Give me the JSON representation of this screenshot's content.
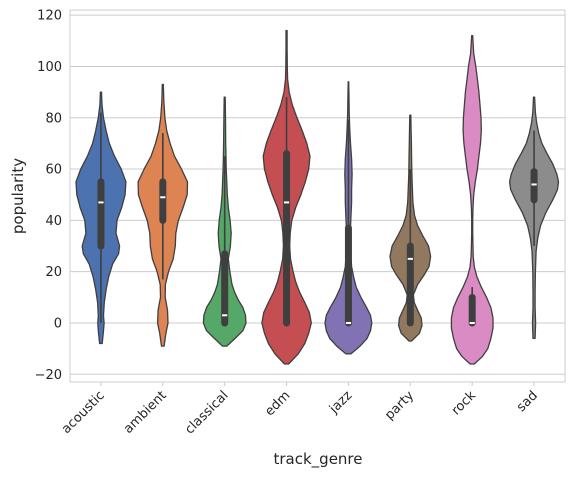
{
  "chart_data": {
    "type": "violin",
    "title": "",
    "xlabel": "track_genre",
    "ylabel": "popularity",
    "ylim": [
      -23,
      122
    ],
    "yticks": [
      -20,
      0,
      20,
      40,
      60,
      80,
      100,
      120
    ],
    "grid": "horizontal",
    "legend": "none",
    "categories": [
      "acoustic",
      "ambient",
      "classical",
      "edm",
      "jazz",
      "party",
      "rock",
      "sad"
    ],
    "colors": [
      "#4c72b0",
      "#dd8452",
      "#55a868",
      "#c44e52",
      "#8172b3",
      "#937860",
      "#da8bc3",
      "#8c8c8c"
    ],
    "series": [
      {
        "min": -8,
        "max": 90,
        "q1": 30,
        "median": 47,
        "q3": 55,
        "whisker_low": 0,
        "whisker_high": 82,
        "density": [
          [
            -8,
            0.05
          ],
          [
            -3,
            0.1
          ],
          [
            0,
            0.12
          ],
          [
            3,
            0.1
          ],
          [
            8,
            0.13
          ],
          [
            13,
            0.2
          ],
          [
            18,
            0.3
          ],
          [
            23,
            0.45
          ],
          [
            27,
            0.68
          ],
          [
            30,
            0.72
          ],
          [
            35,
            0.58
          ],
          [
            40,
            0.62
          ],
          [
            45,
            0.8
          ],
          [
            50,
            0.93
          ],
          [
            55,
            0.96
          ],
          [
            60,
            0.78
          ],
          [
            65,
            0.52
          ],
          [
            70,
            0.32
          ],
          [
            75,
            0.2
          ],
          [
            80,
            0.1
          ],
          [
            85,
            0.04
          ],
          [
            90,
            0.02
          ]
        ]
      },
      {
        "min": -9,
        "max": 93,
        "q1": 40,
        "median": 49,
        "q3": 55,
        "whisker_low": 17,
        "whisker_high": 74,
        "density": [
          [
            -9,
            0.05
          ],
          [
            -4,
            0.12
          ],
          [
            0,
            0.2
          ],
          [
            5,
            0.18
          ],
          [
            10,
            0.09
          ],
          [
            15,
            0.1
          ],
          [
            20,
            0.22
          ],
          [
            25,
            0.4
          ],
          [
            30,
            0.48
          ],
          [
            35,
            0.5
          ],
          [
            40,
            0.6
          ],
          [
            45,
            0.78
          ],
          [
            50,
            0.94
          ],
          [
            55,
            0.95
          ],
          [
            60,
            0.72
          ],
          [
            65,
            0.45
          ],
          [
            70,
            0.28
          ],
          [
            75,
            0.15
          ],
          [
            80,
            0.08
          ],
          [
            86,
            0.04
          ],
          [
            93,
            0.02
          ]
        ]
      },
      {
        "min": -9,
        "max": 88,
        "q1": 0,
        "median": 3,
        "q3": 27,
        "whisker_low": 0,
        "whisker_high": 65,
        "density": [
          [
            -9,
            0.08
          ],
          [
            -6,
            0.4
          ],
          [
            -3,
            0.7
          ],
          [
            0,
            0.82
          ],
          [
            3,
            0.8
          ],
          [
            6,
            0.7
          ],
          [
            9,
            0.52
          ],
          [
            12,
            0.38
          ],
          [
            15,
            0.28
          ],
          [
            20,
            0.2
          ],
          [
            25,
            0.14
          ],
          [
            30,
            0.22
          ],
          [
            35,
            0.25
          ],
          [
            40,
            0.21
          ],
          [
            45,
            0.14
          ],
          [
            50,
            0.1
          ],
          [
            55,
            0.08
          ],
          [
            60,
            0.06
          ],
          [
            65,
            0.05
          ],
          [
            70,
            0.04
          ],
          [
            80,
            0.03
          ],
          [
            88,
            0.02
          ]
        ]
      },
      {
        "min": -16,
        "max": 114,
        "q1": 0,
        "median": 47,
        "q3": 66,
        "whisker_low": 0,
        "whisker_high": 88,
        "density": [
          [
            -16,
            0.08
          ],
          [
            -12,
            0.45
          ],
          [
            -8,
            0.7
          ],
          [
            -4,
            0.85
          ],
          [
            0,
            0.95
          ],
          [
            4,
            0.88
          ],
          [
            8,
            0.7
          ],
          [
            12,
            0.5
          ],
          [
            16,
            0.35
          ],
          [
            20,
            0.25
          ],
          [
            25,
            0.15
          ],
          [
            30,
            0.12
          ],
          [
            35,
            0.14
          ],
          [
            40,
            0.2
          ],
          [
            45,
            0.35
          ],
          [
            50,
            0.55
          ],
          [
            55,
            0.72
          ],
          [
            60,
            0.85
          ],
          [
            65,
            0.9
          ],
          [
            70,
            0.78
          ],
          [
            75,
            0.6
          ],
          [
            80,
            0.4
          ],
          [
            85,
            0.22
          ],
          [
            90,
            0.1
          ],
          [
            95,
            0.04
          ],
          [
            100,
            0.03
          ],
          [
            107,
            0.02
          ],
          [
            114,
            0.02
          ]
        ]
      },
      {
        "min": -12,
        "max": 94,
        "q1": 0,
        "median": 0,
        "q3": 37,
        "whisker_low": 0,
        "whisker_high": 79,
        "density": [
          [
            -12,
            0.1
          ],
          [
            -9,
            0.45
          ],
          [
            -6,
            0.72
          ],
          [
            -3,
            0.85
          ],
          [
            0,
            0.9
          ],
          [
            3,
            0.85
          ],
          [
            6,
            0.7
          ],
          [
            10,
            0.48
          ],
          [
            14,
            0.3
          ],
          [
            18,
            0.2
          ],
          [
            22,
            0.12
          ],
          [
            28,
            0.08
          ],
          [
            35,
            0.07
          ],
          [
            42,
            0.1
          ],
          [
            47,
            0.12
          ],
          [
            52,
            0.12
          ],
          [
            58,
            0.14
          ],
          [
            64,
            0.12
          ],
          [
            70,
            0.08
          ],
          [
            76,
            0.05
          ],
          [
            82,
            0.03
          ],
          [
            88,
            0.02
          ],
          [
            94,
            0.01
          ]
        ]
      },
      {
        "min": -7,
        "max": 81,
        "q1": 0,
        "median": 25,
        "q3": 30,
        "whisker_low": 0,
        "whisker_high": 60,
        "density": [
          [
            -7,
            0.05
          ],
          [
            -4,
            0.35
          ],
          [
            -1,
            0.45
          ],
          [
            2,
            0.42
          ],
          [
            5,
            0.28
          ],
          [
            8,
            0.15
          ],
          [
            11,
            0.12
          ],
          [
            15,
            0.28
          ],
          [
            19,
            0.55
          ],
          [
            22,
            0.72
          ],
          [
            26,
            0.78
          ],
          [
            30,
            0.7
          ],
          [
            34,
            0.48
          ],
          [
            38,
            0.28
          ],
          [
            42,
            0.16
          ],
          [
            47,
            0.1
          ],
          [
            52,
            0.08
          ],
          [
            58,
            0.06
          ],
          [
            64,
            0.05
          ],
          [
            70,
            0.04
          ],
          [
            75,
            0.03
          ],
          [
            81,
            0.02
          ]
        ]
      },
      {
        "min": -16,
        "max": 112,
        "q1": 0,
        "median": 0,
        "q3": 10,
        "whisker_low": 0,
        "whisker_high": 14,
        "density": [
          [
            -16,
            0.08
          ],
          [
            -13,
            0.4
          ],
          [
            -10,
            0.6
          ],
          [
            -6,
            0.72
          ],
          [
            -2,
            0.8
          ],
          [
            2,
            0.8
          ],
          [
            6,
            0.72
          ],
          [
            10,
            0.55
          ],
          [
            14,
            0.35
          ],
          [
            18,
            0.18
          ],
          [
            22,
            0.08
          ],
          [
            26,
            0.04
          ],
          [
            30,
            0.03
          ],
          [
            35,
            0.02
          ],
          [
            40,
            0.02
          ],
          [
            45,
            0.03
          ],
          [
            50,
            0.06
          ],
          [
            55,
            0.12
          ],
          [
            60,
            0.2
          ],
          [
            65,
            0.26
          ],
          [
            70,
            0.32
          ],
          [
            75,
            0.35
          ],
          [
            80,
            0.34
          ],
          [
            85,
            0.3
          ],
          [
            90,
            0.26
          ],
          [
            95,
            0.2
          ],
          [
            100,
            0.14
          ],
          [
            105,
            0.06
          ],
          [
            112,
            0.02
          ]
        ]
      },
      {
        "min": -6,
        "max": 88,
        "q1": 48,
        "median": 54,
        "q3": 59,
        "whisker_low": 30,
        "whisker_high": 75,
        "density": [
          [
            -6,
            0.04
          ],
          [
            0,
            0.06
          ],
          [
            6,
            0.04
          ],
          [
            12,
            0.04
          ],
          [
            20,
            0.05
          ],
          [
            28,
            0.08
          ],
          [
            33,
            0.14
          ],
          [
            38,
            0.25
          ],
          [
            43,
            0.45
          ],
          [
            48,
            0.72
          ],
          [
            52,
            0.9
          ],
          [
            55,
            0.94
          ],
          [
            58,
            0.88
          ],
          [
            62,
            0.72
          ],
          [
            66,
            0.5
          ],
          [
            70,
            0.3
          ],
          [
            74,
            0.18
          ],
          [
            78,
            0.1
          ],
          [
            82,
            0.05
          ],
          [
            88,
            0.02
          ]
        ]
      }
    ]
  }
}
